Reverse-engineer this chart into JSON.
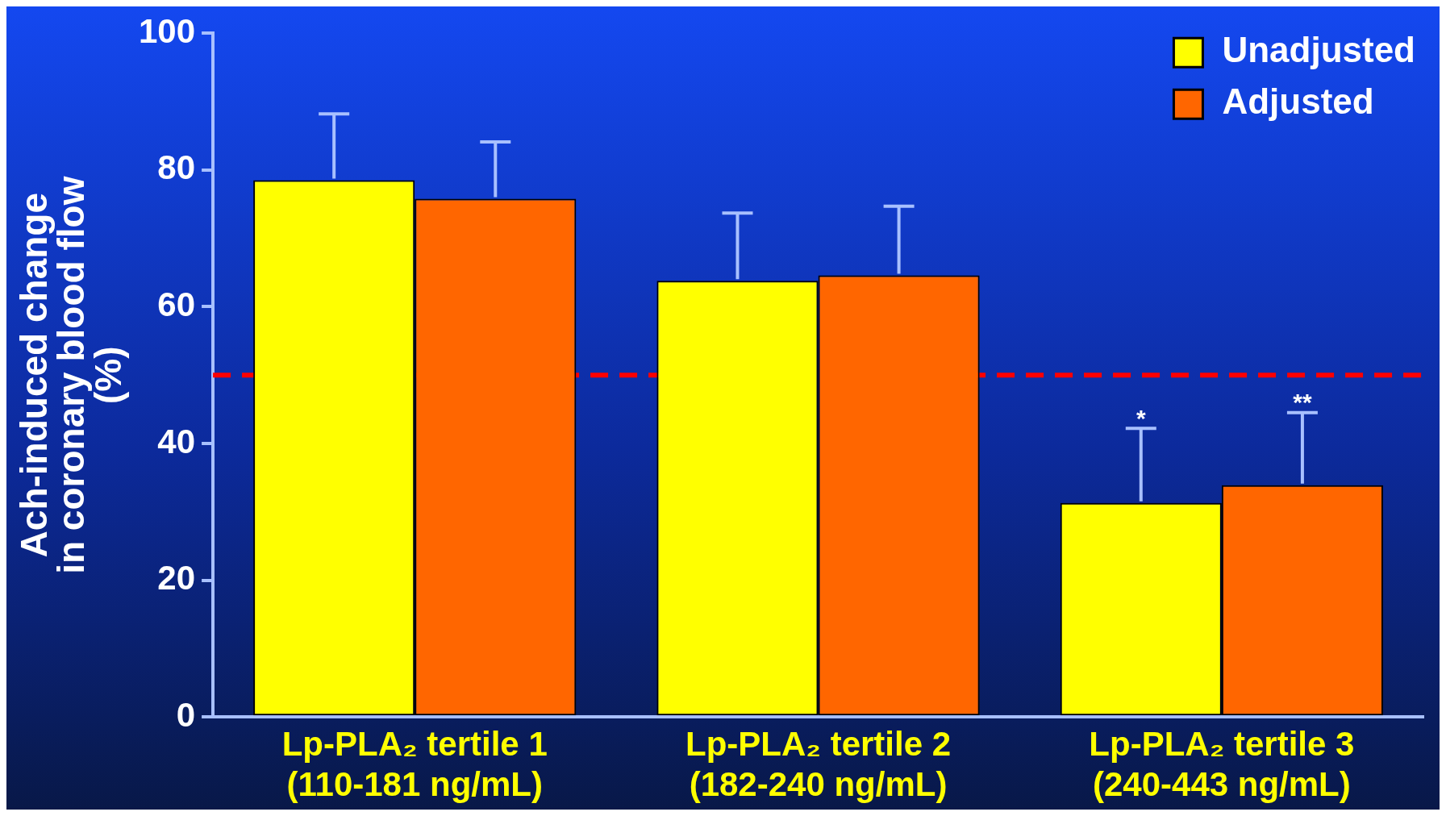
{
  "chart_data": {
    "type": "bar",
    "ylabel": "Ach-induced change\nin coronary blood flow\n(%)",
    "categories": [
      "Lp-PLA₂ tertile 1\n(110-181 ng/mL)",
      "Lp-PLA₂ tertile 2\n(182-240 ng/mL)",
      "Lp-PLA₂ tertile 3\n(240-443 ng/mL)"
    ],
    "series": [
      {
        "name": "Unadjusted",
        "color": "#ffff00",
        "values": [
          78.5,
          63.8,
          31.3
        ],
        "errors": [
          9.7,
          9.9,
          10.9
        ]
      },
      {
        "name": "Adjusted",
        "color": "#ff6600",
        "values": [
          75.8,
          64.6,
          33.9
        ],
        "errors": [
          8.3,
          10.1,
          10.6
        ]
      }
    ],
    "ylim": [
      0,
      100
    ],
    "yticks": [
      0,
      20,
      40,
      60,
      80,
      100
    ],
    "grid": false,
    "legend": "top right",
    "ref_lines": [
      {
        "axis": "y",
        "value": 50,
        "color": "#ff0000",
        "line_style": "dashed"
      }
    ],
    "annotations": [
      "*",
      "**"
    ]
  }
}
